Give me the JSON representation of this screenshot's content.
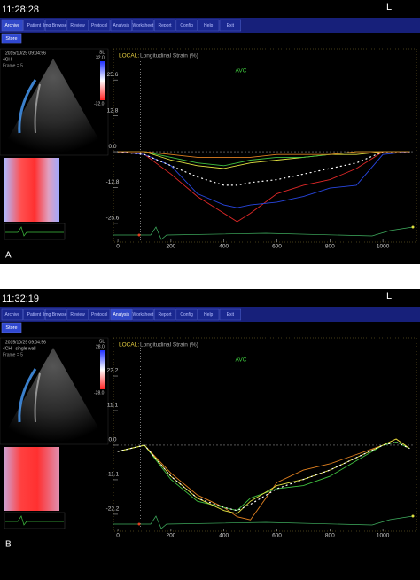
{
  "panels": [
    {
      "label": "A",
      "clock": "11:28:28",
      "orientation": "L",
      "menu": [
        "Archive",
        "Patient",
        "Img Browser",
        "Review",
        "Protocol",
        "Analysis",
        "Worksheet",
        "Report",
        "Config",
        "Help",
        "Exit"
      ],
      "active_menu": 0,
      "store": "Store",
      "image_info": {
        "timestamp": "2015/10/29 09:04:56",
        "view": "4CH",
        "frame": "Frame = 5",
        "scale_label": "SL",
        "scale_max": "32.0",
        "scale_min": "-32.0"
      }
    },
    {
      "label": "B",
      "clock": "11:32:19",
      "orientation": "L",
      "menu": [
        "Archive",
        "Patient",
        "Img Browser",
        "Review",
        "Protocol",
        "Analysis",
        "Worksheet",
        "Report",
        "Config",
        "Help",
        "Exit"
      ],
      "active_menu": 5,
      "store": "Store",
      "image_info": {
        "timestamp": "2015/10/29 09:04:56",
        "view": "4CH - single wall",
        "frame": "Frame = 5",
        "scale_label": "SL",
        "scale_max": "28.0",
        "scale_min": "-28.0"
      }
    }
  ],
  "chart_data": [
    {
      "type": "line",
      "title_prefix": "LOCAL:",
      "title": "Longitudinal Strain (%)",
      "annotations": [
        {
          "text": "AVC",
          "x": 85
        }
      ],
      "x": [
        0,
        100,
        200,
        300,
        400,
        450,
        500,
        600,
        700,
        800,
        900,
        1000,
        1100
      ],
      "xlim": [
        -17,
        1120
      ],
      "xticks": [
        0,
        200,
        400,
        600,
        800,
        1000
      ],
      "ylim": [
        -28.8,
        35.8
      ],
      "yticks": [
        25.6,
        12.8,
        {
          "value": 0,
          "label": "0.0"
        },
        -12.8,
        -25.6
      ],
      "series": [
        {
          "color": "#e02828",
          "values": [
            0,
            -1,
            -8,
            -16,
            -22,
            -25,
            -22,
            -15,
            -12,
            -10,
            -6,
            0,
            0
          ]
        },
        {
          "color": "#2846e0",
          "values": [
            0,
            -1,
            -5,
            -15,
            -19,
            -20,
            -19,
            -18,
            -16,
            -13,
            -12,
            -1,
            0
          ]
        },
        {
          "color": "#ffffff",
          "dotted": true,
          "values": [
            0,
            -1,
            -5,
            -9,
            -12,
            -12,
            -11,
            -10,
            -8,
            -6,
            -4,
            0,
            0
          ]
        },
        {
          "color": "#e0e040",
          "values": [
            0,
            0,
            -3,
            -5,
            -6,
            -5,
            -4,
            -3,
            -2,
            -1,
            -1,
            0,
            0
          ]
        },
        {
          "color": "#40c040",
          "values": [
            0,
            0,
            -2,
            -4,
            -5,
            -4,
            -3,
            -2,
            -2,
            -1,
            0,
            0,
            0
          ]
        },
        {
          "color": "#e08020",
          "values": [
            0,
            0,
            -1,
            -2,
            -2,
            -2,
            -2,
            -1,
            -1,
            -1,
            0,
            0,
            0
          ]
        }
      ]
    },
    {
      "type": "line",
      "title_prefix": "LOCAL:",
      "title": "Longitudinal Strain (%)",
      "annotations": [
        {
          "text": "AVC",
          "x": 85
        }
      ],
      "x": [
        0,
        100,
        200,
        300,
        400,
        450,
        500,
        600,
        700,
        800,
        900,
        1000,
        1050,
        1100
      ],
      "xlim": [
        -17,
        1120
      ],
      "xticks": [
        0,
        200,
        400,
        600,
        800,
        1000
      ],
      "ylim": [
        -24.5,
        33.6
      ],
      "yticks": [
        22.2,
        11.1,
        {
          "value": 0,
          "label": "0.0"
        },
        -11.1,
        -22.2
      ],
      "series": [
        {
          "color": "#e08020",
          "values": [
            -2,
            0,
            -9,
            -16,
            -20,
            -23,
            -24,
            -12,
            -8,
            -6,
            -3,
            0,
            2,
            -1
          ]
        },
        {
          "color": "#40c040",
          "values": [
            -2,
            0,
            -11,
            -18,
            -20,
            -21,
            -17,
            -14,
            -13,
            -10,
            -5,
            0,
            1,
            -1
          ]
        },
        {
          "color": "#e0e040",
          "values": [
            -2,
            0,
            -10,
            -17,
            -21,
            -22,
            -18,
            -13,
            -11,
            -8,
            -4,
            0,
            2,
            -1
          ]
        },
        {
          "color": "#ffffff",
          "dotted": true,
          "values": [
            -2,
            0,
            -10,
            -17,
            -20,
            -21,
            -19,
            -14,
            -11,
            -8,
            -4,
            0,
            1,
            -1
          ]
        }
      ]
    }
  ]
}
